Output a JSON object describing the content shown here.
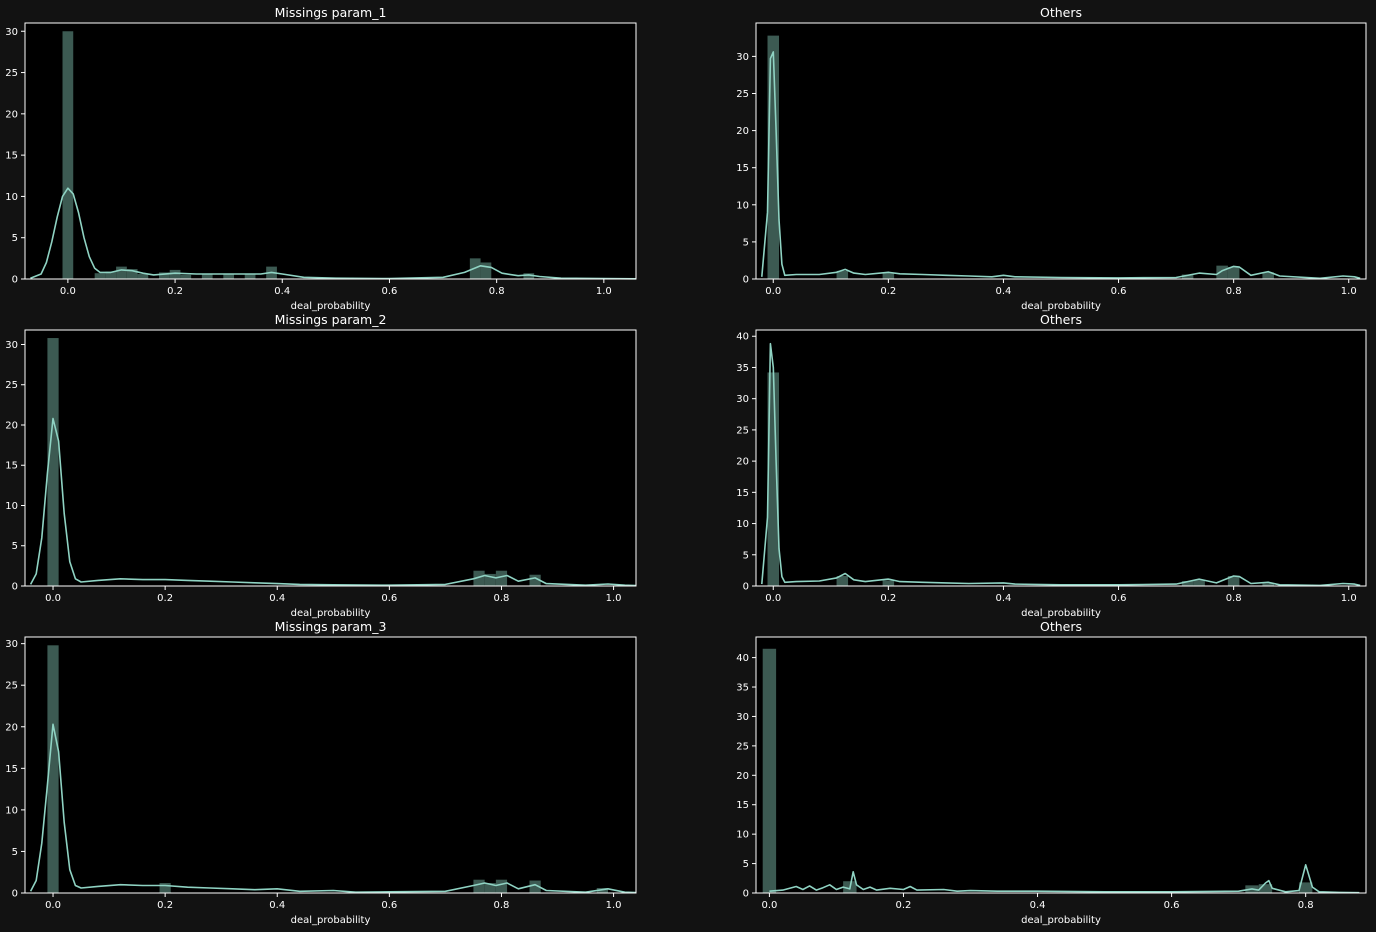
{
  "figure": {
    "background": "#121212",
    "axes_background": "#000000",
    "bar_color": "#3c5a52",
    "kde_color": "#8fd3c3",
    "spine_color": "#ffffff"
  },
  "chart_data": [
    {
      "type": "bar",
      "title": "Missings param_1",
      "xlabel": "deal_probability",
      "ylabel": "",
      "xlim": [
        -0.08,
        1.06
      ],
      "ylim": [
        0,
        31
      ],
      "xticks": [
        0.0,
        0.2,
        0.4,
        0.6,
        0.8,
        1.0
      ],
      "xtick_labels": [
        "0.0",
        "0.2",
        "0.4",
        "0.6",
        "0.8",
        "1.0"
      ],
      "yticks": [
        0,
        5,
        10,
        15,
        20,
        25,
        30
      ],
      "ytick_labels": [
        "0",
        "5",
        "10",
        "15",
        "20",
        "25",
        "30"
      ],
      "bin_width": 0.02,
      "bars": [
        [
          0.0,
          30
        ],
        [
          0.06,
          0.7
        ],
        [
          0.08,
          0.9
        ],
        [
          0.1,
          1.5
        ],
        [
          0.12,
          1.2
        ],
        [
          0.14,
          0.6
        ],
        [
          0.18,
          0.8
        ],
        [
          0.2,
          1.1
        ],
        [
          0.22,
          0.5
        ],
        [
          0.26,
          0.6
        ],
        [
          0.3,
          0.6
        ],
        [
          0.34,
          0.6
        ],
        [
          0.38,
          1.5
        ],
        [
          0.76,
          2.5
        ],
        [
          0.78,
          2.0
        ],
        [
          0.86,
          0.7
        ]
      ],
      "kde": [
        [
          -0.07,
          0.1
        ],
        [
          -0.05,
          0.6
        ],
        [
          -0.04,
          2
        ],
        [
          -0.03,
          4.5
        ],
        [
          -0.02,
          7.5
        ],
        [
          -0.01,
          10
        ],
        [
          0.0,
          11
        ],
        [
          0.01,
          10.3
        ],
        [
          0.02,
          8
        ],
        [
          0.03,
          5
        ],
        [
          0.04,
          2.7
        ],
        [
          0.05,
          1.3
        ],
        [
          0.06,
          0.8
        ],
        [
          0.08,
          0.8
        ],
        [
          0.1,
          1.1
        ],
        [
          0.12,
          1.0
        ],
        [
          0.14,
          0.7
        ],
        [
          0.16,
          0.5
        ],
        [
          0.2,
          0.7
        ],
        [
          0.24,
          0.6
        ],
        [
          0.3,
          0.6
        ],
        [
          0.36,
          0.6
        ],
        [
          0.38,
          0.8
        ],
        [
          0.4,
          0.6
        ],
        [
          0.44,
          0.2
        ],
        [
          0.5,
          0.1
        ],
        [
          0.6,
          0.05
        ],
        [
          0.7,
          0.2
        ],
        [
          0.74,
          0.8
        ],
        [
          0.77,
          1.6
        ],
        [
          0.79,
          1.4
        ],
        [
          0.81,
          0.7
        ],
        [
          0.84,
          0.4
        ],
        [
          0.86,
          0.5
        ],
        [
          0.88,
          0.3
        ],
        [
          0.92,
          0.1
        ],
        [
          1.0,
          0.05
        ],
        [
          1.06,
          0.02
        ]
      ]
    },
    {
      "type": "bar",
      "title": "Others",
      "xlabel": "deal_probability",
      "ylabel": "",
      "xlim": [
        -0.03,
        1.03
      ],
      "ylim": [
        0,
        34.5
      ],
      "xticks": [
        0.0,
        0.2,
        0.4,
        0.6,
        0.8,
        1.0
      ],
      "xtick_labels": [
        "0.0",
        "0.2",
        "0.4",
        "0.6",
        "0.8",
        "1.0"
      ],
      "yticks": [
        0,
        5,
        10,
        15,
        20,
        25,
        30
      ],
      "ytick_labels": [
        "0",
        "5",
        "10",
        "15",
        "20",
        "25",
        "30"
      ],
      "bin_width": 0.02,
      "bars": [
        [
          0.0,
          32.8
        ],
        [
          0.12,
          1.1
        ],
        [
          0.2,
          0.8
        ],
        [
          0.78,
          1.8
        ],
        [
          0.8,
          1.6
        ],
        [
          0.86,
          0.9
        ],
        [
          0.72,
          0.6
        ]
      ],
      "kde": [
        [
          -0.02,
          0.3
        ],
        [
          -0.01,
          9
        ],
        [
          -0.005,
          29.7
        ],
        [
          0.0,
          30.6
        ],
        [
          0.005,
          20
        ],
        [
          0.01,
          8
        ],
        [
          0.015,
          2
        ],
        [
          0.02,
          0.5
        ],
        [
          0.04,
          0.6
        ],
        [
          0.08,
          0.6
        ],
        [
          0.11,
          0.9
        ],
        [
          0.125,
          1.3
        ],
        [
          0.14,
          0.8
        ],
        [
          0.16,
          0.6
        ],
        [
          0.2,
          0.9
        ],
        [
          0.22,
          0.7
        ],
        [
          0.26,
          0.6
        ],
        [
          0.3,
          0.5
        ],
        [
          0.34,
          0.4
        ],
        [
          0.38,
          0.3
        ],
        [
          0.4,
          0.5
        ],
        [
          0.42,
          0.3
        ],
        [
          0.5,
          0.2
        ],
        [
          0.6,
          0.15
        ],
        [
          0.7,
          0.2
        ],
        [
          0.74,
          0.8
        ],
        [
          0.77,
          0.6
        ],
        [
          0.78,
          1.1
        ],
        [
          0.8,
          1.7
        ],
        [
          0.81,
          1.6
        ],
        [
          0.83,
          0.5
        ],
        [
          0.86,
          1.0
        ],
        [
          0.88,
          0.4
        ],
        [
          0.95,
          0.1
        ],
        [
          0.99,
          0.4
        ],
        [
          1.01,
          0.3
        ],
        [
          1.02,
          0.1
        ]
      ]
    },
    {
      "type": "bar",
      "title": "Missings param_2",
      "xlabel": "deal_probability",
      "ylabel": "",
      "xlim": [
        -0.05,
        1.04
      ],
      "ylim": [
        0,
        31.8
      ],
      "xticks": [
        0.0,
        0.2,
        0.4,
        0.6,
        0.8,
        1.0
      ],
      "xtick_labels": [
        "0.0",
        "0.2",
        "0.4",
        "0.6",
        "0.8",
        "1.0"
      ],
      "yticks": [
        0,
        5,
        10,
        15,
        20,
        25,
        30
      ],
      "ytick_labels": [
        "0",
        "5",
        "10",
        "15",
        "20",
        "25",
        "30"
      ],
      "bin_width": 0.02,
      "bars": [
        [
          0.0,
          30.8
        ],
        [
          0.76,
          1.9
        ],
        [
          0.78,
          1.5
        ],
        [
          0.8,
          1.9
        ],
        [
          0.86,
          1.4
        ]
      ],
      "kde": [
        [
          -0.04,
          0.2
        ],
        [
          -0.03,
          1.5
        ],
        [
          -0.02,
          6
        ],
        [
          -0.01,
          14
        ],
        [
          0.0,
          20.8
        ],
        [
          0.01,
          18
        ],
        [
          0.02,
          9
        ],
        [
          0.03,
          3
        ],
        [
          0.04,
          0.9
        ],
        [
          0.05,
          0.5
        ],
        [
          0.08,
          0.7
        ],
        [
          0.12,
          0.9
        ],
        [
          0.16,
          0.8
        ],
        [
          0.2,
          0.8
        ],
        [
          0.24,
          0.7
        ],
        [
          0.28,
          0.6
        ],
        [
          0.32,
          0.5
        ],
        [
          0.36,
          0.4
        ],
        [
          0.4,
          0.3
        ],
        [
          0.44,
          0.2
        ],
        [
          0.5,
          0.15
        ],
        [
          0.6,
          0.1
        ],
        [
          0.7,
          0.2
        ],
        [
          0.75,
          0.9
        ],
        [
          0.77,
          1.3
        ],
        [
          0.79,
          1.0
        ],
        [
          0.81,
          1.3
        ],
        [
          0.83,
          0.6
        ],
        [
          0.86,
          1.0
        ],
        [
          0.88,
          0.3
        ],
        [
          0.95,
          0.1
        ],
        [
          0.99,
          0.25
        ],
        [
          1.02,
          0.1
        ],
        [
          1.04,
          0.05
        ]
      ]
    },
    {
      "type": "bar",
      "title": "Others",
      "xlabel": "deal_probability",
      "ylabel": "",
      "xlim": [
        -0.03,
        1.03
      ],
      "ylim": [
        0,
        41
      ],
      "xticks": [
        0.0,
        0.2,
        0.4,
        0.6,
        0.8,
        1.0
      ],
      "xtick_labels": [
        "0.0",
        "0.2",
        "0.4",
        "0.6",
        "0.8",
        "1.0"
      ],
      "yticks": [
        0,
        5,
        10,
        15,
        20,
        25,
        30,
        35,
        40
      ],
      "ytick_labels": [
        "0",
        "5",
        "10",
        "15",
        "20",
        "25",
        "30",
        "35",
        "40"
      ],
      "bin_width": 0.02,
      "bars": [
        [
          0.0,
          34.2
        ],
        [
          0.12,
          1.6
        ],
        [
          0.2,
          0.9
        ],
        [
          0.72,
          0.8
        ],
        [
          0.74,
          1.0
        ],
        [
          0.8,
          1.6
        ],
        [
          0.86,
          0.4
        ]
      ],
      "kde": [
        [
          -0.02,
          0.3
        ],
        [
          -0.01,
          11
        ],
        [
          -0.005,
          38.8
        ],
        [
          0.0,
          35
        ],
        [
          0.005,
          20
        ],
        [
          0.01,
          6
        ],
        [
          0.015,
          1.5
        ],
        [
          0.02,
          0.6
        ],
        [
          0.04,
          0.7
        ],
        [
          0.08,
          0.8
        ],
        [
          0.11,
          1.3
        ],
        [
          0.125,
          2.0
        ],
        [
          0.14,
          1.0
        ],
        [
          0.16,
          0.7
        ],
        [
          0.2,
          1.1
        ],
        [
          0.22,
          0.7
        ],
        [
          0.26,
          0.6
        ],
        [
          0.3,
          0.5
        ],
        [
          0.34,
          0.4
        ],
        [
          0.4,
          0.5
        ],
        [
          0.42,
          0.3
        ],
        [
          0.5,
          0.2
        ],
        [
          0.6,
          0.2
        ],
        [
          0.7,
          0.3
        ],
        [
          0.74,
          1.1
        ],
        [
          0.77,
          0.5
        ],
        [
          0.8,
          1.6
        ],
        [
          0.81,
          1.5
        ],
        [
          0.83,
          0.4
        ],
        [
          0.86,
          0.6
        ],
        [
          0.88,
          0.2
        ],
        [
          0.95,
          0.1
        ],
        [
          0.99,
          0.4
        ],
        [
          1.01,
          0.3
        ],
        [
          1.02,
          0.1
        ]
      ]
    },
    {
      "type": "bar",
      "title": "Missings param_3",
      "xlabel": "deal_probability",
      "ylabel": "",
      "xlim": [
        -0.05,
        1.04
      ],
      "ylim": [
        0,
        30.8
      ],
      "xticks": [
        0.0,
        0.2,
        0.4,
        0.6,
        0.8,
        1.0
      ],
      "xtick_labels": [
        "0.0",
        "0.2",
        "0.4",
        "0.6",
        "0.8",
        "1.0"
      ],
      "yticks": [
        0,
        5,
        10,
        15,
        20,
        25,
        30
      ],
      "ytick_labels": [
        "0",
        "5",
        "10",
        "15",
        "20",
        "25",
        "30"
      ],
      "bin_width": 0.02,
      "bars": [
        [
          0.0,
          29.8
        ],
        [
          0.2,
          1.2
        ],
        [
          0.76,
          1.6
        ],
        [
          0.78,
          1.2
        ],
        [
          0.8,
          1.6
        ],
        [
          0.86,
          1.5
        ],
        [
          0.98,
          0.6
        ]
      ],
      "kde": [
        [
          -0.04,
          0.2
        ],
        [
          -0.03,
          1.5
        ],
        [
          -0.02,
          6
        ],
        [
          -0.01,
          13
        ],
        [
          0.0,
          20.3
        ],
        [
          0.01,
          17
        ],
        [
          0.02,
          8.5
        ],
        [
          0.03,
          2.8
        ],
        [
          0.04,
          0.9
        ],
        [
          0.05,
          0.6
        ],
        [
          0.08,
          0.8
        ],
        [
          0.12,
          1.0
        ],
        [
          0.16,
          0.9
        ],
        [
          0.2,
          0.9
        ],
        [
          0.24,
          0.7
        ],
        [
          0.28,
          0.6
        ],
        [
          0.32,
          0.5
        ],
        [
          0.36,
          0.4
        ],
        [
          0.4,
          0.5
        ],
        [
          0.44,
          0.2
        ],
        [
          0.5,
          0.3
        ],
        [
          0.54,
          0.1
        ],
        [
          0.6,
          0.15
        ],
        [
          0.7,
          0.2
        ],
        [
          0.75,
          0.9
        ],
        [
          0.77,
          1.2
        ],
        [
          0.79,
          0.9
        ],
        [
          0.81,
          1.2
        ],
        [
          0.83,
          0.5
        ],
        [
          0.86,
          1.0
        ],
        [
          0.88,
          0.3
        ],
        [
          0.95,
          0.1
        ],
        [
          0.99,
          0.5
        ],
        [
          1.02,
          0.1
        ],
        [
          1.04,
          0.05
        ]
      ]
    },
    {
      "type": "bar",
      "title": "Others",
      "xlabel": "deal_probability",
      "ylabel": "",
      "xlim": [
        -0.02,
        0.89
      ],
      "ylim": [
        0,
        43.5
      ],
      "xticks": [
        0.0,
        0.2,
        0.4,
        0.6,
        0.8
      ],
      "xtick_labels": [
        "0.0",
        "0.2",
        "0.4",
        "0.6",
        "0.8"
      ],
      "yticks": [
        0,
        5,
        10,
        15,
        20,
        25,
        30,
        35,
        40
      ],
      "ytick_labels": [
        "0",
        "5",
        "10",
        "15",
        "20",
        "25",
        "30",
        "35",
        "40"
      ],
      "bin_width": 0.02,
      "bars": [
        [
          0.0,
          41.5
        ],
        [
          0.12,
          2.0
        ],
        [
          0.72,
          1.3
        ],
        [
          0.74,
          1.5
        ],
        [
          0.8,
          1.8
        ]
      ],
      "kde": [
        [
          0.0,
          0.3
        ],
        [
          0.02,
          0.5
        ],
        [
          0.04,
          1.1
        ],
        [
          0.05,
          0.6
        ],
        [
          0.06,
          1.2
        ],
        [
          0.07,
          0.5
        ],
        [
          0.08,
          0.9
        ],
        [
          0.09,
          1.4
        ],
        [
          0.1,
          0.6
        ],
        [
          0.11,
          1.0
        ],
        [
          0.12,
          0.7
        ],
        [
          0.125,
          3.6
        ],
        [
          0.13,
          1.4
        ],
        [
          0.14,
          0.6
        ],
        [
          0.15,
          1.0
        ],
        [
          0.16,
          0.5
        ],
        [
          0.18,
          0.8
        ],
        [
          0.2,
          0.6
        ],
        [
          0.21,
          1.1
        ],
        [
          0.22,
          0.5
        ],
        [
          0.26,
          0.6
        ],
        [
          0.28,
          0.3
        ],
        [
          0.3,
          0.4
        ],
        [
          0.34,
          0.3
        ],
        [
          0.4,
          0.3
        ],
        [
          0.5,
          0.2
        ],
        [
          0.6,
          0.2
        ],
        [
          0.7,
          0.3
        ],
        [
          0.72,
          0.7
        ],
        [
          0.73,
          0.5
        ],
        [
          0.74,
          1.7
        ],
        [
          0.745,
          2.1
        ],
        [
          0.75,
          0.8
        ],
        [
          0.77,
          0.2
        ],
        [
          0.79,
          0.4
        ],
        [
          0.8,
          4.8
        ],
        [
          0.81,
          1.0
        ],
        [
          0.82,
          0.2
        ],
        [
          0.85,
          0.1
        ],
        [
          0.88,
          0.05
        ]
      ]
    }
  ]
}
